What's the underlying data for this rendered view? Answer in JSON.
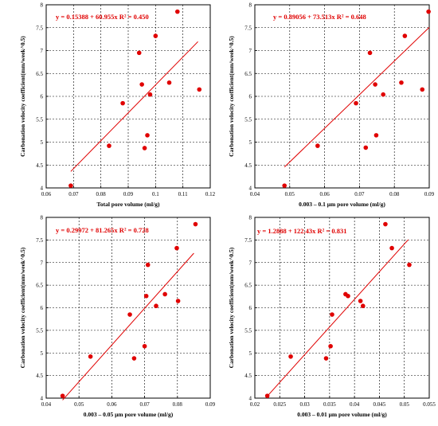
{
  "chart_data": [
    {
      "type": "scatter",
      "equation": "y = 0.15388 + 60.955x   R² = 0.450",
      "xlabel": "Total pore volume (ml/g)",
      "ylabel": "Carbonation velocity coefficient(mm/week^0.5)",
      "xlim": [
        0.06,
        0.12
      ],
      "ylim": [
        4,
        8
      ],
      "xticks": [
        "0.06",
        "0.07",
        "0.08",
        "0.09",
        "0.1",
        "0.11",
        "0.12"
      ],
      "yticks": [
        "4",
        "4.5",
        "5",
        "5.5",
        "6",
        "6.5",
        "7",
        "7.5",
        "8"
      ],
      "grid": true,
      "x": [
        0.069,
        0.083,
        0.088,
        0.094,
        0.095,
        0.096,
        0.097,
        0.098,
        0.1,
        0.105,
        0.108,
        0.116
      ],
      "y": [
        4.05,
        4.92,
        5.85,
        6.95,
        6.26,
        4.87,
        5.15,
        6.04,
        7.32,
        6.3,
        7.85,
        6.15
      ],
      "fit_intercept": 0.15388,
      "fit_slope": 60.955,
      "fit_x": [
        0.069,
        0.1155
      ]
    },
    {
      "type": "scatter",
      "equation": "y = 0.89056 + 73.513x   R² = 0.648",
      "xlabel": "0.003 – 0.1 μm pore volume (ml/g)",
      "ylabel": "Carbonation velocity coefficient(mm/week^0.5)",
      "xlim": [
        0.04,
        0.09
      ],
      "ylim": [
        4,
        8
      ],
      "xticks": [
        "0.04",
        "0.05",
        "0.06",
        "0.07",
        "0.08",
        "0.09"
      ],
      "yticks": [
        "4",
        "4.5",
        "5",
        "5.5",
        "6",
        "6.5",
        "7",
        "7.5",
        "8"
      ],
      "grid": true,
      "x": [
        0.0485,
        0.058,
        0.069,
        0.0718,
        0.073,
        0.0745,
        0.0748,
        0.0768,
        0.082,
        0.083,
        0.088,
        0.0898
      ],
      "y": [
        4.05,
        4.92,
        5.85,
        4.88,
        6.95,
        6.26,
        5.15,
        6.04,
        6.3,
        7.32,
        6.15,
        7.85
      ],
      "fit_intercept": 0.89056,
      "fit_slope": 73.513,
      "fit_x": [
        0.0485,
        0.09
      ]
    },
    {
      "type": "scatter",
      "equation": "y = 0.29972 + 81.265x   R² = 0.728",
      "xlabel": "0.003 – 0.05 μm pore volume (ml/g)",
      "ylabel": "Carbonation velocity coefficient(mm/week^0.5)",
      "xlim": [
        0.04,
        0.09
      ],
      "ylim": [
        4,
        8
      ],
      "xticks": [
        "0.04",
        "0.05",
        "0.06",
        "0.07",
        "0.08",
        "0.09"
      ],
      "yticks": [
        "4",
        "4.5",
        "5",
        "5.5",
        "6",
        "6.5",
        "7",
        "7.5",
        "8"
      ],
      "grid": true,
      "x": [
        0.045,
        0.0535,
        0.0655,
        0.0668,
        0.07,
        0.0705,
        0.071,
        0.0735,
        0.0762,
        0.0798,
        0.0802,
        0.0855
      ],
      "y": [
        4.05,
        4.92,
        5.85,
        4.88,
        5.15,
        6.26,
        6.95,
        6.04,
        6.3,
        7.32,
        6.15,
        7.85
      ],
      "fit_intercept": 0.29972,
      "fit_slope": 81.265,
      "fit_x": [
        0.045,
        0.085
      ]
    },
    {
      "type": "scatter",
      "equation": "y = 1.2888 + 122.43x   R² = 0.831",
      "xlabel": "0.003 – 0.01 μm pore volume (ml/g)",
      "ylabel": "Carbonation velocity coefficient(mm/week^0.5)",
      "xlim": [
        0.02,
        0.055
      ],
      "ylim": [
        4,
        8
      ],
      "xticks": [
        "0.02",
        "0.025",
        "0.03",
        "0.035",
        "0.04",
        "0.045",
        "0.05",
        "0.055"
      ],
      "yticks": [
        "4",
        "4.5",
        "5",
        "5.5",
        "6",
        "6.5",
        "7",
        "7.5",
        "8"
      ],
      "grid": true,
      "x": [
        0.0225,
        0.0272,
        0.0343,
        0.0352,
        0.0355,
        0.0382,
        0.0387,
        0.0412,
        0.0417,
        0.0462,
        0.0475,
        0.051
      ],
      "y": [
        4.05,
        4.92,
        4.88,
        5.15,
        5.85,
        6.3,
        6.26,
        6.15,
        6.04,
        7.85,
        7.32,
        6.95
      ],
      "fit_intercept": 1.2888,
      "fit_slope": 122.43,
      "fit_x": [
        0.0225,
        0.0508
      ]
    }
  ]
}
